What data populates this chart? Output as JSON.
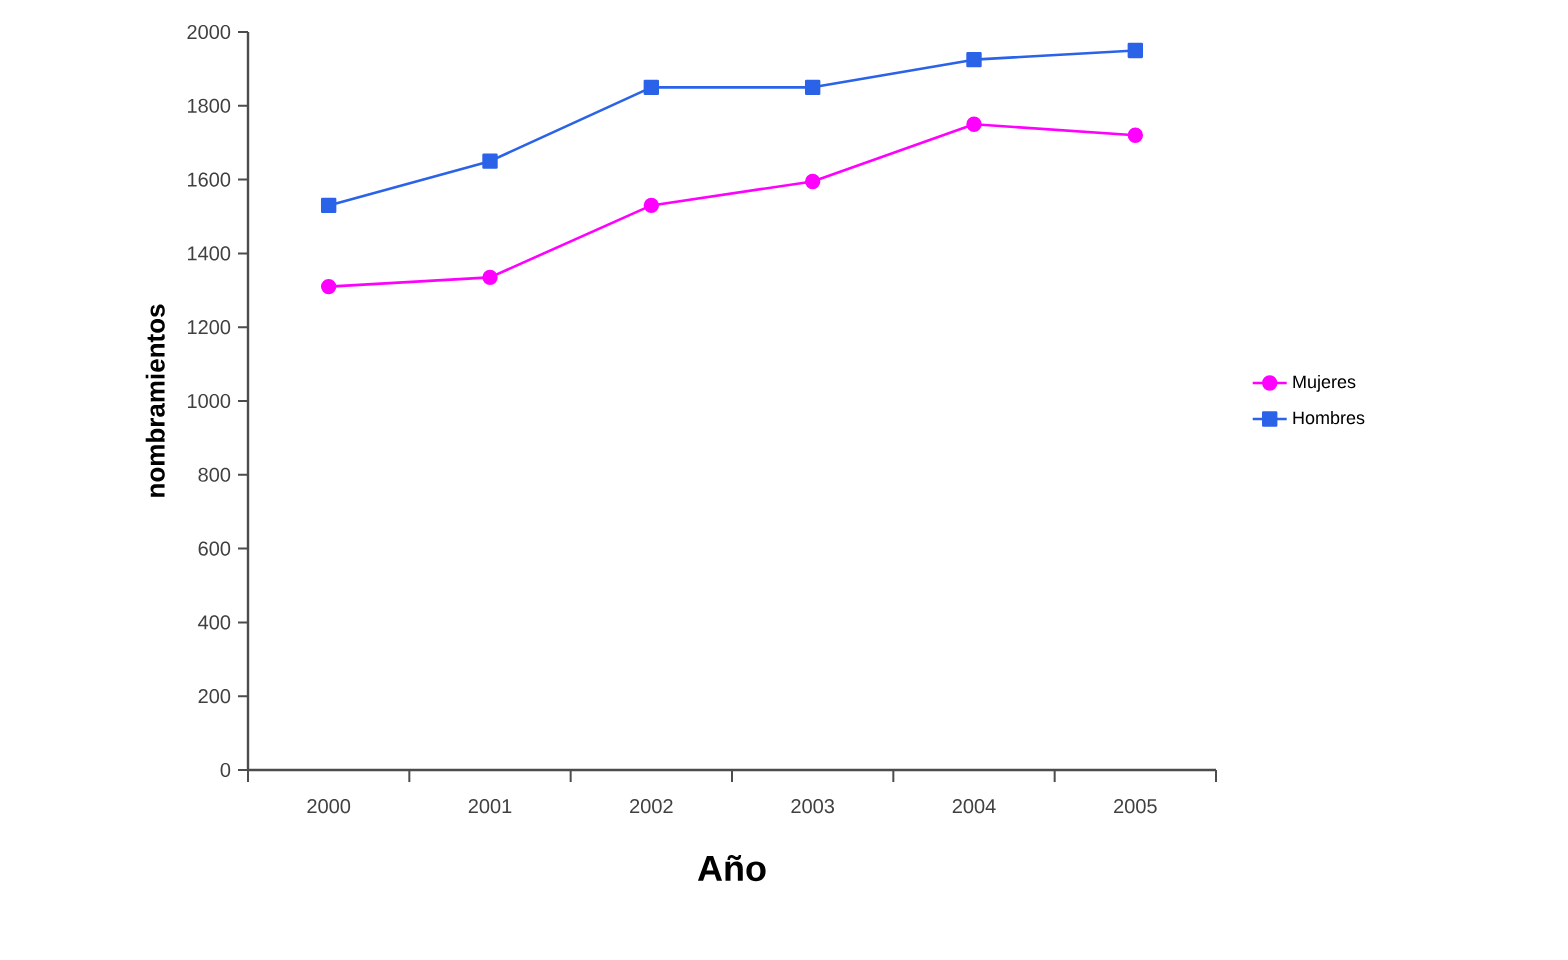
{
  "chart_data": {
    "type": "line",
    "xlabel": "Año",
    "ylabel": "nombramientos",
    "categories": [
      "2000",
      "2001",
      "2002",
      "2003",
      "2004",
      "2005"
    ],
    "series": [
      {
        "name": "Mujeres",
        "color": "#ff00ff",
        "values": [
          1310,
          1335,
          1530,
          1595,
          1750,
          1720
        ],
        "marker": "circle"
      },
      {
        "name": "Hombres",
        "color": "#2a62e8",
        "values": [
          1530,
          1650,
          1850,
          1850,
          1925,
          1950
        ],
        "marker": "square"
      }
    ],
    "ylim": [
      0,
      2000
    ],
    "yticks": [
      0,
      200,
      400,
      600,
      800,
      1000,
      1200,
      1400,
      1600,
      1800,
      2000
    ],
    "grid": false,
    "legend": "right"
  }
}
